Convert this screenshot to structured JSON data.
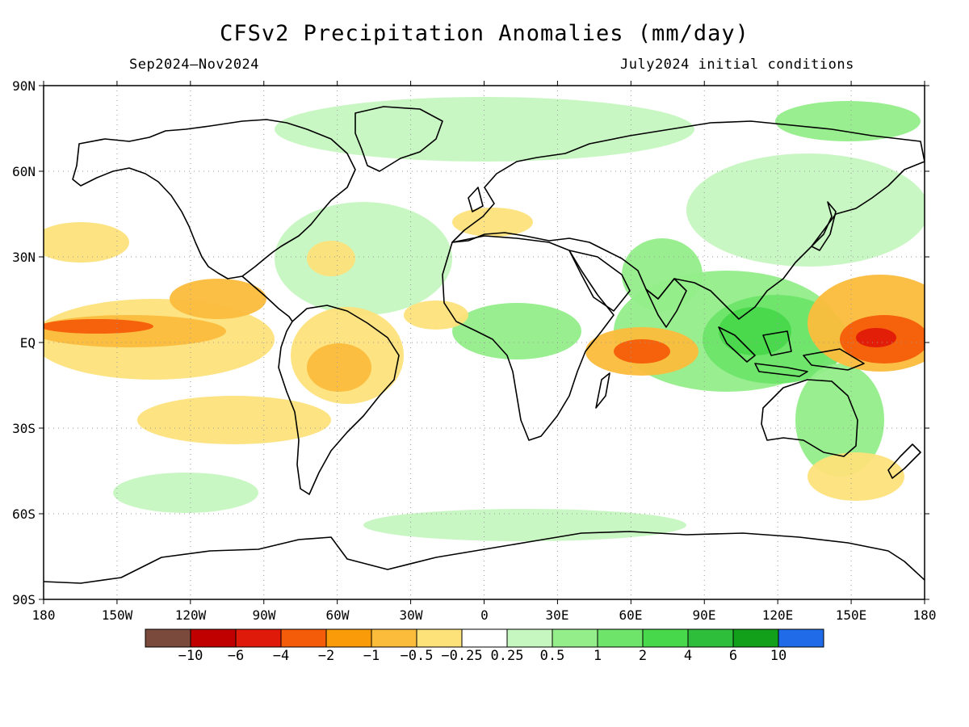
{
  "title": "CFSv2 Precipitation Anomalies (mm/day)",
  "subtitle_left": "Sep2024–Nov2024",
  "subtitle_right": "July2024 initial conditions",
  "lat_labels": [
    "90N",
    "60N",
    "30N",
    "EQ",
    "30S",
    "60S",
    "90S"
  ],
  "lon_labels": [
    "180",
    "150W",
    "120W",
    "90W",
    "60W",
    "30W",
    "0",
    "30E",
    "60E",
    "90E",
    "120E",
    "150E",
    "180"
  ],
  "colorbar": {
    "labels": [
      "−10",
      "−6",
      "−4",
      "−2",
      "−1",
      "−0.5",
      "−0.25",
      "0.25",
      "0.5",
      "1",
      "2",
      "4",
      "6",
      "10"
    ],
    "colors": [
      "#7a4a3c",
      "#c00000",
      "#e01a0a",
      "#f55c0a",
      "#fa9b0a",
      "#fbbc3c",
      "#fde27a",
      "#ffffff",
      "#c6f7c0",
      "#94ee8a",
      "#6ee46a",
      "#48d84c",
      "#2fbe3c",
      "#12a01a",
      "#1f6be8"
    ]
  },
  "map_colors": {
    "neg_strong": "#f55c0a",
    "neg_med": "#fa9b0a",
    "neg_mild": "#fbbc3c",
    "neg_light": "#fde27a",
    "pos_light": "#c6f7c0",
    "pos_med": "#94ee8a",
    "pos_strong": "#6ee46a",
    "pos_vstrong": "#48d84c",
    "neg_peak": "#e01a0a"
  }
}
